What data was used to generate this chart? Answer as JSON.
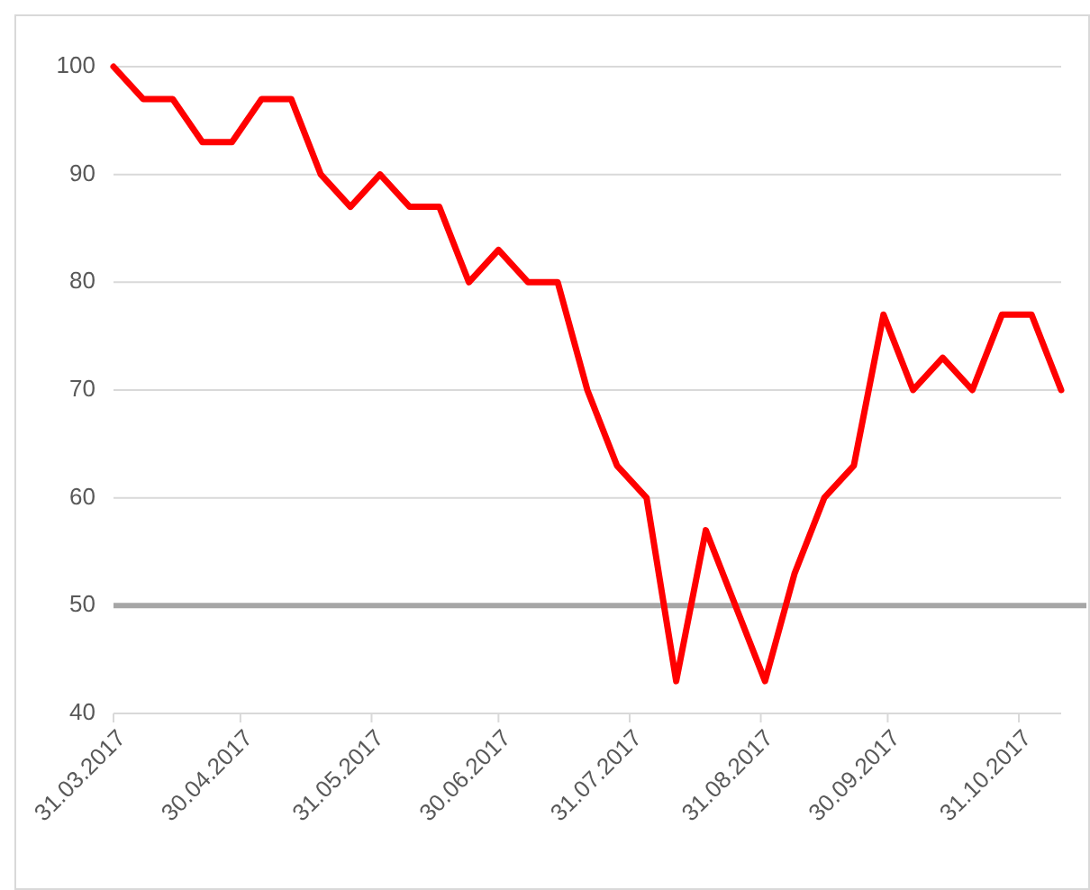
{
  "chart_data": {
    "type": "line",
    "x": [
      "2017-03-31",
      "2017-04-07",
      "2017-04-14",
      "2017-04-21",
      "2017-04-28",
      "2017-05-05",
      "2017-05-12",
      "2017-05-19",
      "2017-05-26",
      "2017-06-02",
      "2017-06-09",
      "2017-06-16",
      "2017-06-23",
      "2017-06-30",
      "2017-07-07",
      "2017-07-14",
      "2017-07-21",
      "2017-07-28",
      "2017-08-04",
      "2017-08-11",
      "2017-08-18",
      "2017-08-25",
      "2017-09-01",
      "2017-09-08",
      "2017-09-15",
      "2017-09-22",
      "2017-09-29",
      "2017-10-06",
      "2017-10-13",
      "2017-10-20",
      "2017-10-27",
      "2017-11-03",
      "2017-11-10"
    ],
    "series": [
      {
        "color": "#ff0000",
        "values": [
          100,
          97,
          97,
          93,
          93,
          97,
          97,
          90,
          87,
          90,
          87,
          87,
          80,
          83,
          80,
          80,
          70,
          63,
          60,
          43,
          57,
          50,
          43,
          53,
          60,
          63,
          77,
          70,
          73,
          70,
          77,
          77,
          70
        ]
      }
    ],
    "xlim": [
      "2017-03-31",
      "2017-11-10"
    ],
    "xticks": [
      {
        "value": "2017-03-31",
        "label": "31.03.2017"
      },
      {
        "value": "2017-04-30",
        "label": "30.04.2017"
      },
      {
        "value": "2017-05-31",
        "label": "31.05.2017"
      },
      {
        "value": "2017-06-30",
        "label": "30.06.2017"
      },
      {
        "value": "2017-07-31",
        "label": "31.07.2017"
      },
      {
        "value": "2017-08-31",
        "label": "31.08.2017"
      },
      {
        "value": "2017-09-30",
        "label": "30.09.2017"
      },
      {
        "value": "2017-10-31",
        "label": "31.10.2017"
      }
    ],
    "ylim": [
      40,
      100
    ],
    "yticks": [
      40,
      50,
      60,
      70,
      80,
      90,
      100
    ],
    "grid": "y",
    "marker": "none",
    "line_style": "solid",
    "ref_lines": [
      {
        "axis": "y",
        "value": 50,
        "color": "#a6a6a6"
      }
    ]
  }
}
